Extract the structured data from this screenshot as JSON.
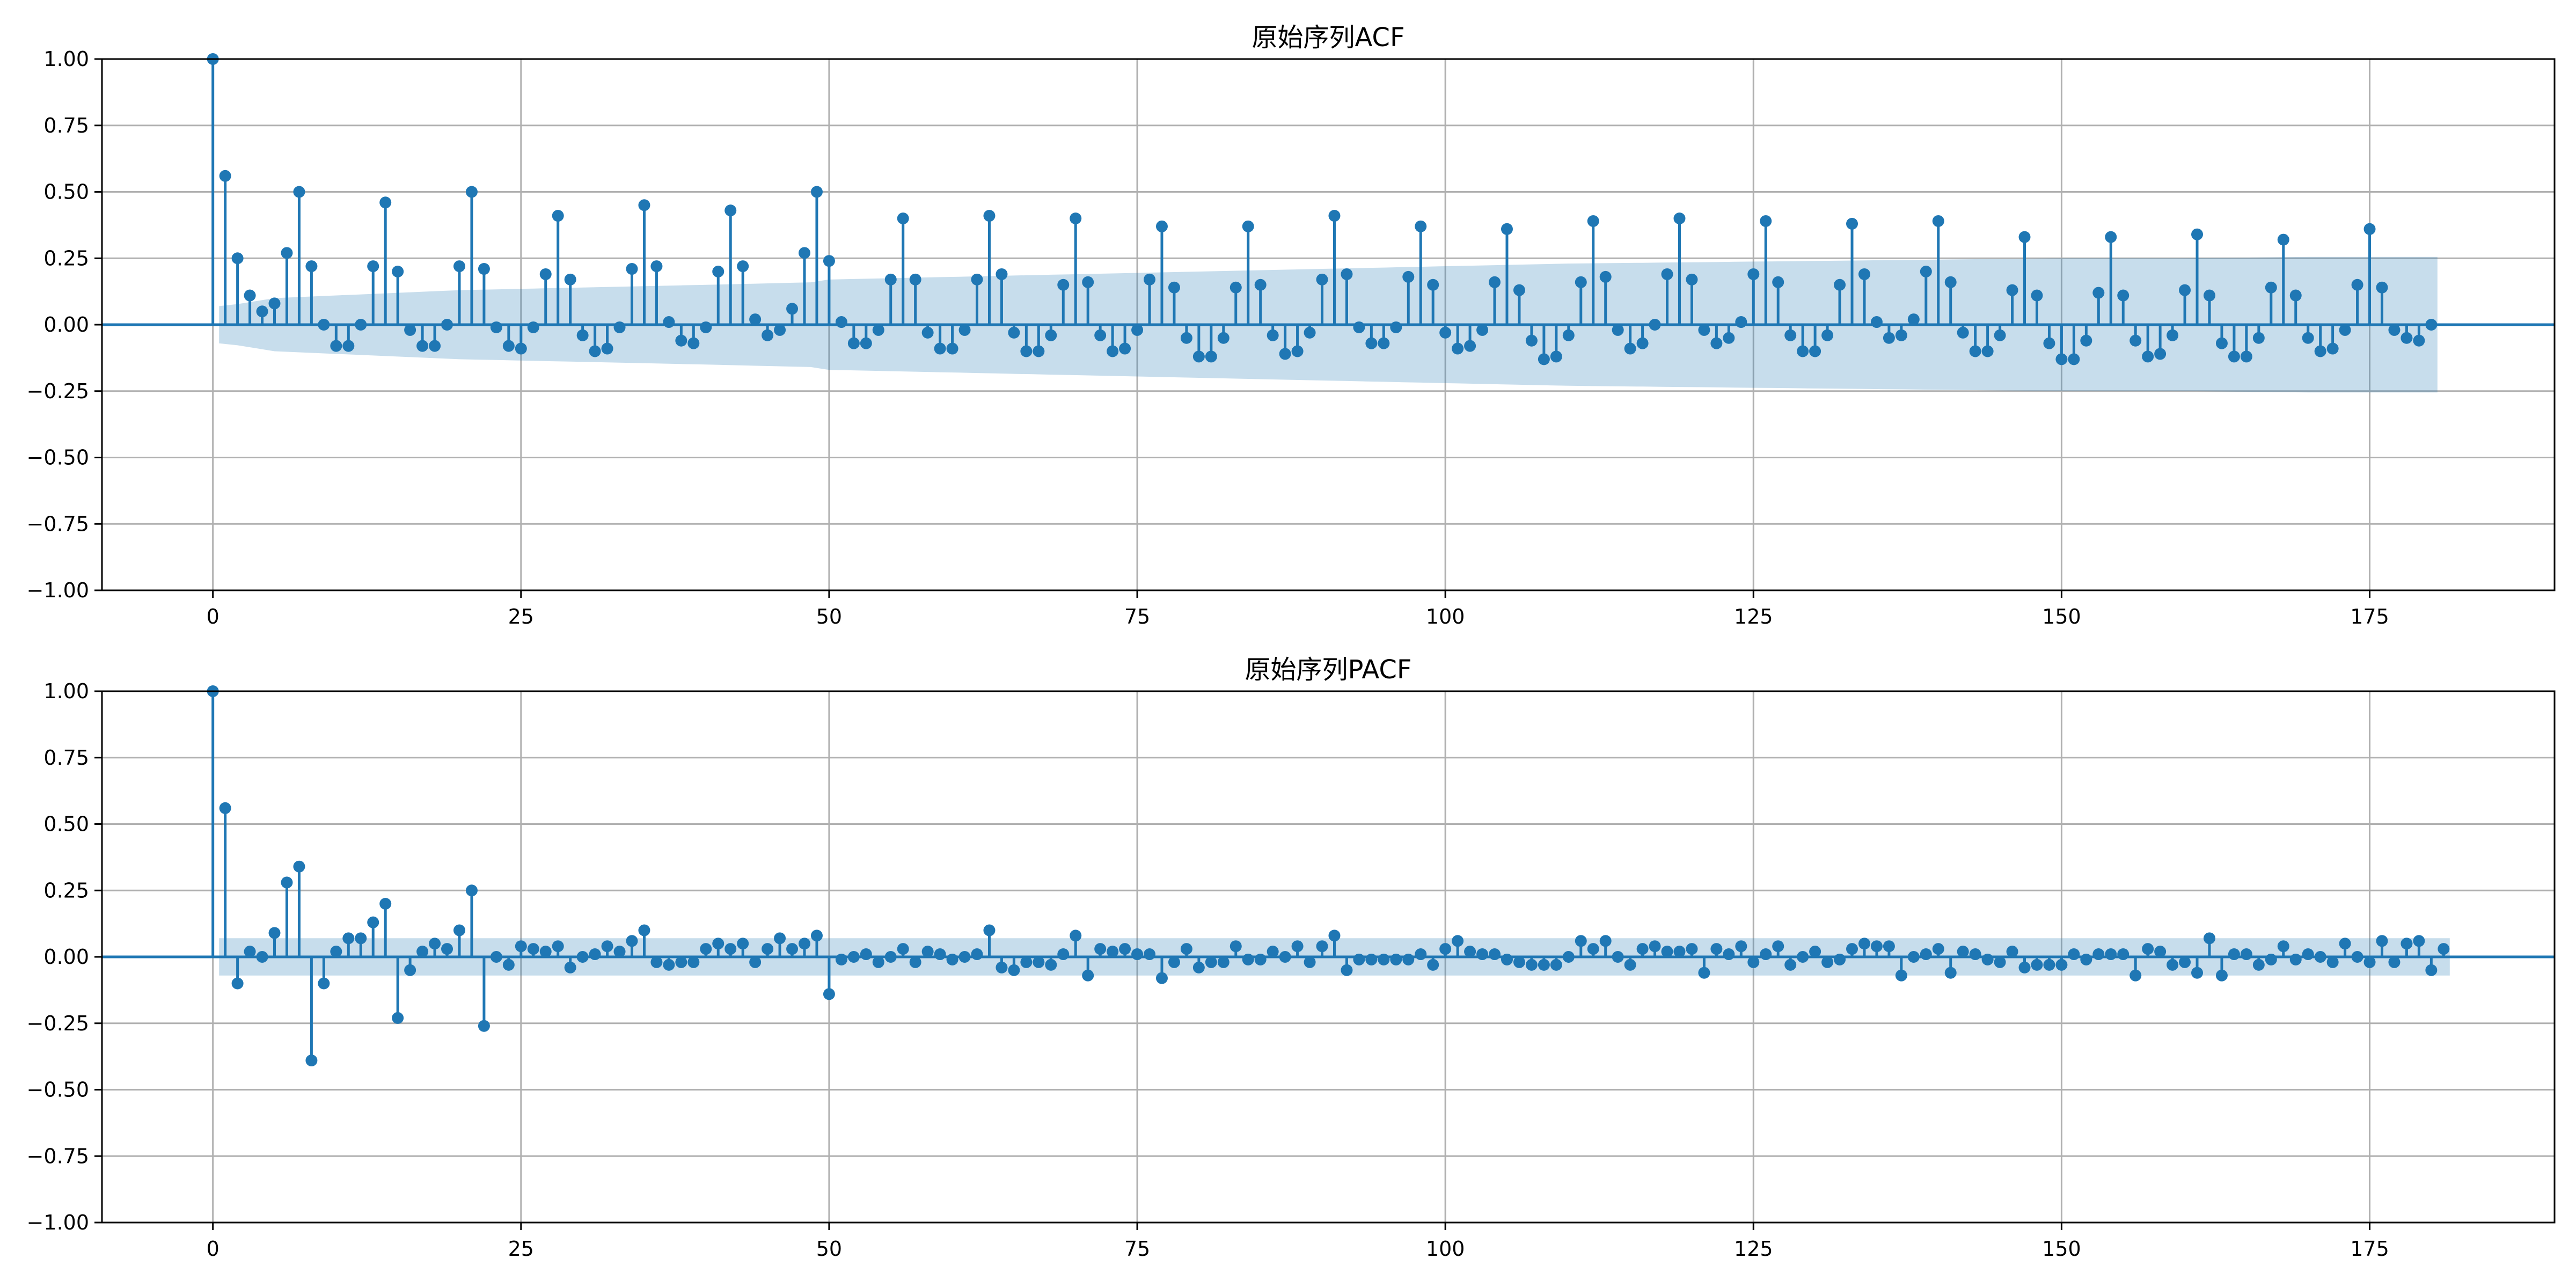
{
  "colors": {
    "series": "#1f77b4",
    "band": "#1f77b4",
    "grid": "#b0b0b0",
    "axis": "#000000"
  },
  "chart_data": [
    {
      "type": "stem",
      "title": "原始序列ACF",
      "xlabel": "",
      "ylabel": "",
      "xlim": [
        -9,
        190
      ],
      "ylim": [
        -1.0,
        1.0
      ],
      "xticks": [
        0,
        25,
        50,
        75,
        100,
        125,
        150,
        175
      ],
      "xtick_labels": [
        "0",
        "25",
        "50",
        "75",
        "100",
        "125",
        "150",
        "175"
      ],
      "yticks": [
        -1.0,
        -0.75,
        -0.5,
        -0.25,
        0.0,
        0.25,
        0.5,
        0.75,
        1.0
      ],
      "ytick_labels": [
        "−1.00",
        "−0.75",
        "−0.50",
        "−0.25",
        "0.00",
        "0.25",
        "0.50",
        "0.75",
        "1.00"
      ],
      "grid": true,
      "x_start": 0,
      "values": [
        1.0,
        0.56,
        0.25,
        0.11,
        0.05,
        0.08,
        0.27,
        0.5,
        0.22,
        0.0,
        -0.08,
        -0.08,
        0.0,
        0.22,
        0.46,
        0.2,
        -0.02,
        -0.08,
        -0.08,
        0.0,
        0.22,
        0.5,
        0.21,
        -0.01,
        -0.08,
        -0.09,
        -0.01,
        0.19,
        0.41,
        0.17,
        -0.04,
        -0.1,
        -0.09,
        -0.01,
        0.21,
        0.45,
        0.22,
        0.01,
        -0.06,
        -0.07,
        -0.01,
        0.2,
        0.43,
        0.22,
        0.02,
        -0.04,
        -0.02,
        0.06,
        0.27,
        0.5,
        0.24,
        0.01,
        -0.07,
        -0.07,
        -0.02,
        0.17,
        0.4,
        0.17,
        -0.03,
        -0.09,
        -0.09,
        -0.02,
        0.17,
        0.41,
        0.19,
        -0.03,
        -0.1,
        -0.1,
        -0.04,
        0.15,
        0.4,
        0.16,
        -0.04,
        -0.1,
        -0.09,
        -0.02,
        0.17,
        0.37,
        0.14,
        -0.05,
        -0.12,
        -0.12,
        -0.05,
        0.14,
        0.37,
        0.15,
        -0.04,
        -0.11,
        -0.1,
        -0.03,
        0.17,
        0.41,
        0.19,
        -0.01,
        -0.07,
        -0.07,
        -0.01,
        0.18,
        0.37,
        0.15,
        -0.03,
        -0.09,
        -0.08,
        -0.02,
        0.16,
        0.36,
        0.13,
        -0.06,
        -0.13,
        -0.12,
        -0.04,
        0.16,
        0.39,
        0.18,
        -0.02,
        -0.09,
        -0.07,
        0.0,
        0.19,
        0.4,
        0.17,
        -0.02,
        -0.07,
        -0.05,
        0.01,
        0.19,
        0.39,
        0.16,
        -0.04,
        -0.1,
        -0.1,
        -0.04,
        0.15,
        0.38,
        0.19,
        0.01,
        -0.05,
        -0.04,
        0.02,
        0.2,
        0.39,
        0.16,
        -0.03,
        -0.1,
        -0.1,
        -0.04,
        0.13,
        0.33,
        0.11,
        -0.07,
        -0.13,
        -0.13,
        -0.06,
        0.12,
        0.33,
        0.11,
        -0.06,
        -0.12,
        -0.11,
        -0.04,
        0.13,
        0.34,
        0.11,
        -0.07,
        -0.12,
        -0.12,
        -0.05,
        0.14,
        0.32,
        0.11,
        -0.05,
        -0.1,
        -0.09,
        -0.02,
        0.15,
        0.36,
        0.14,
        -0.02,
        -0.05,
        -0.06,
        0.0
      ],
      "confidence_band": [
        [
          1,
          0.07
        ],
        [
          5,
          0.1
        ],
        [
          10,
          0.11
        ],
        [
          20,
          0.13
        ],
        [
          30,
          0.14
        ],
        [
          40,
          0.15
        ],
        [
          49,
          0.16
        ],
        [
          50,
          0.17
        ],
        [
          60,
          0.18
        ],
        [
          70,
          0.19
        ],
        [
          80,
          0.2
        ],
        [
          90,
          0.21
        ],
        [
          100,
          0.22
        ],
        [
          110,
          0.23
        ],
        [
          120,
          0.235
        ],
        [
          130,
          0.24
        ],
        [
          140,
          0.245
        ],
        [
          150,
          0.25
        ],
        [
          160,
          0.25
        ],
        [
          170,
          0.255
        ],
        [
          180,
          0.255
        ]
      ]
    },
    {
      "type": "stem",
      "title": "原始序列PACF",
      "xlabel": "",
      "ylabel": "",
      "xlim": [
        -9,
        190
      ],
      "ylim": [
        -1.0,
        1.0
      ],
      "xticks": [
        0,
        25,
        50,
        75,
        100,
        125,
        150,
        175
      ],
      "xtick_labels": [
        "0",
        "25",
        "50",
        "75",
        "100",
        "125",
        "150",
        "175"
      ],
      "yticks": [
        -1.0,
        -0.75,
        -0.5,
        -0.25,
        0.0,
        0.25,
        0.5,
        0.75,
        1.0
      ],
      "ytick_labels": [
        "−1.00",
        "−0.75",
        "−0.50",
        "−0.25",
        "0.00",
        "0.25",
        "0.50",
        "0.75",
        "1.00"
      ],
      "grid": true,
      "x_start": 0,
      "values": [
        1.0,
        0.56,
        -0.1,
        0.02,
        0.0,
        0.09,
        0.28,
        0.34,
        -0.39,
        -0.1,
        0.02,
        0.07,
        0.07,
        0.13,
        0.2,
        -0.23,
        -0.05,
        0.02,
        0.05,
        0.03,
        0.1,
        0.25,
        -0.26,
        0.0,
        -0.03,
        0.04,
        0.03,
        0.02,
        0.04,
        -0.04,
        0.0,
        0.01,
        0.04,
        0.02,
        0.06,
        0.1,
        -0.02,
        -0.03,
        -0.02,
        -0.02,
        0.03,
        0.05,
        0.03,
        0.05,
        -0.02,
        0.03,
        0.07,
        0.03,
        0.05,
        0.08,
        -0.14,
        -0.01,
        0.0,
        0.01,
        -0.02,
        0.0,
        0.03,
        -0.02,
        0.02,
        0.01,
        -0.01,
        0.0,
        0.01,
        0.1,
        -0.04,
        -0.05,
        -0.02,
        -0.02,
        -0.03,
        0.01,
        0.08,
        -0.07,
        0.03,
        0.02,
        0.03,
        0.01,
        0.01,
        -0.08,
        -0.02,
        0.03,
        -0.04,
        -0.02,
        -0.02,
        0.04,
        -0.01,
        -0.01,
        0.02,
        0.0,
        0.04,
        -0.02,
        0.04,
        0.08,
        -0.05,
        -0.01,
        -0.01,
        -0.01,
        -0.01,
        -0.01,
        0.01,
        -0.03,
        0.03,
        0.06,
        0.02,
        0.01,
        0.01,
        -0.01,
        -0.02,
        -0.03,
        -0.03,
        -0.03,
        0.0,
        0.06,
        0.03,
        0.06,
        0.0,
        -0.03,
        0.03,
        0.04,
        0.02,
        0.02,
        0.03,
        -0.06,
        0.03,
        0.01,
        0.04,
        -0.02,
        0.01,
        0.04,
        -0.03,
        0.0,
        0.02,
        -0.02,
        -0.01,
        0.03,
        0.05,
        0.04,
        0.04,
        -0.07,
        0.0,
        0.01,
        0.03,
        -0.06,
        0.02,
        0.01,
        -0.01,
        -0.02,
        0.02,
        -0.04,
        -0.03,
        -0.03,
        -0.03,
        0.01,
        -0.01,
        0.01,
        0.01,
        0.01,
        -0.07,
        0.03,
        0.02,
        -0.03,
        -0.02,
        -0.06,
        0.07,
        -0.07,
        0.01,
        0.01,
        -0.03,
        -0.01,
        0.04,
        -0.01,
        0.01,
        0.0,
        -0.02,
        0.05,
        0.0,
        -0.02,
        0.06,
        -0.02,
        0.05,
        0.06,
        -0.05,
        0.03
      ],
      "confidence_band": [
        [
          1,
          0.07
        ],
        [
          180,
          0.07
        ]
      ]
    }
  ]
}
